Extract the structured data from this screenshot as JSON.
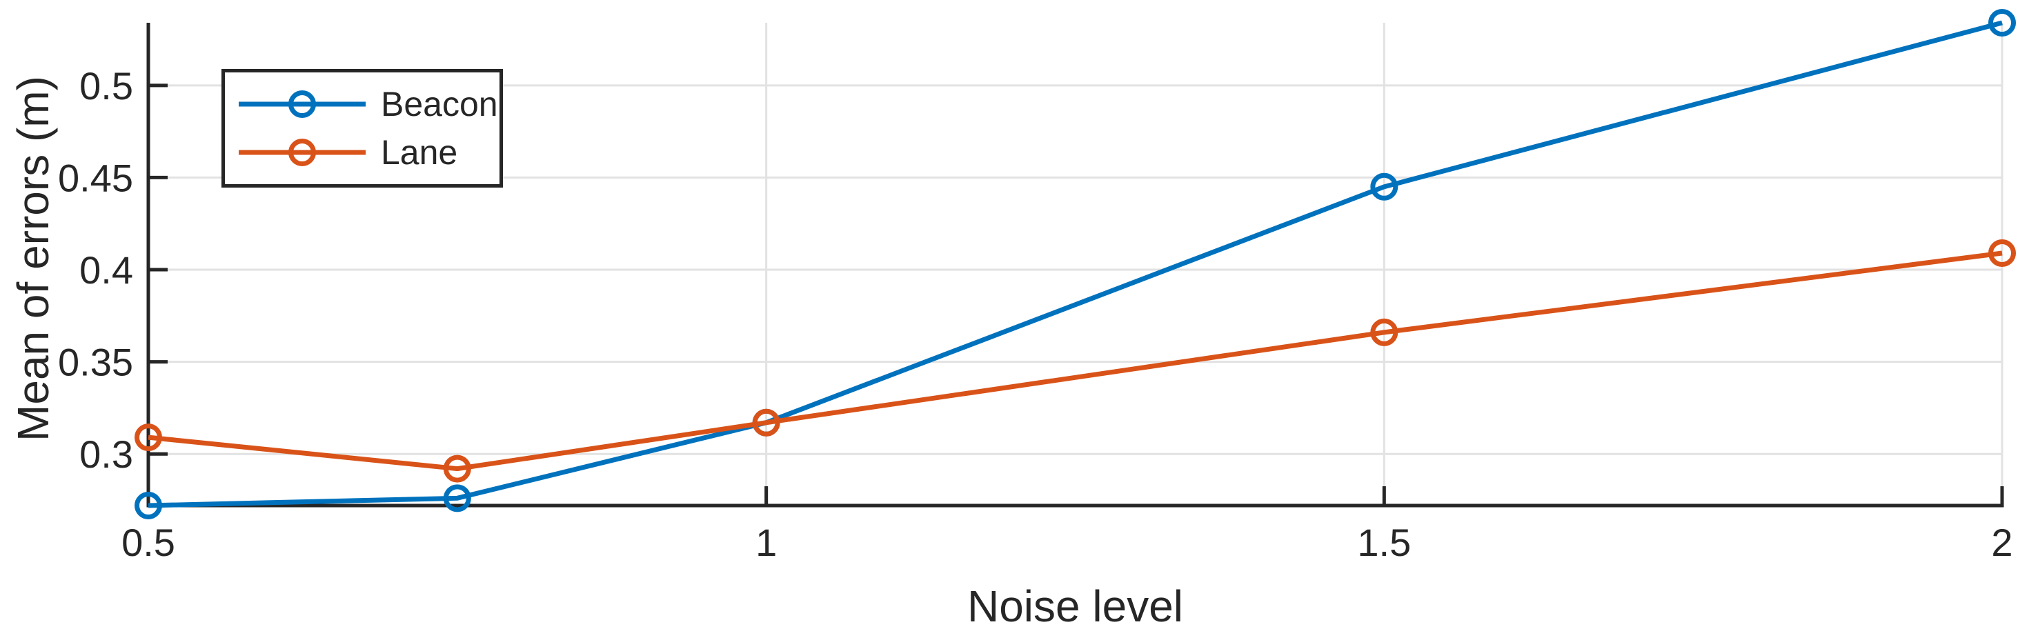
{
  "chart_data": {
    "type": "line",
    "title": "",
    "xlabel": "Noise level",
    "ylabel": "Mean of errors (m)",
    "x": [
      0.5,
      0.75,
      1,
      1.5,
      2
    ],
    "series": [
      {
        "name": "Beacon",
        "color": "#0072BD",
        "values": [
          0.272,
          0.276,
          0.317,
          0.445,
          0.534
        ]
      },
      {
        "name": "Lane",
        "color": "#D95319",
        "values": [
          0.309,
          0.292,
          0.317,
          0.366,
          0.409
        ]
      }
    ],
    "xlim": [
      0.5,
      2
    ],
    "ylim": [
      0.272,
      0.534
    ],
    "x_ticks": {
      "values": [
        0.5,
        1,
        1.5,
        2
      ],
      "labels": [
        "0.5",
        "1",
        "1.5",
        "2"
      ]
    },
    "y_ticks": {
      "values": [
        0.3,
        0.35,
        0.4,
        0.45,
        0.5
      ],
      "labels": [
        "0.3",
        "0.35",
        "0.4",
        "0.45",
        "0.5"
      ]
    },
    "grid": true,
    "marker": "open-circle",
    "legend": {
      "position": "top-left",
      "entries": [
        "Beacon",
        "Lane"
      ]
    },
    "colors": {
      "axis": "#262626",
      "grid": "#E2E2E2",
      "background": "#FFFFFF"
    }
  }
}
